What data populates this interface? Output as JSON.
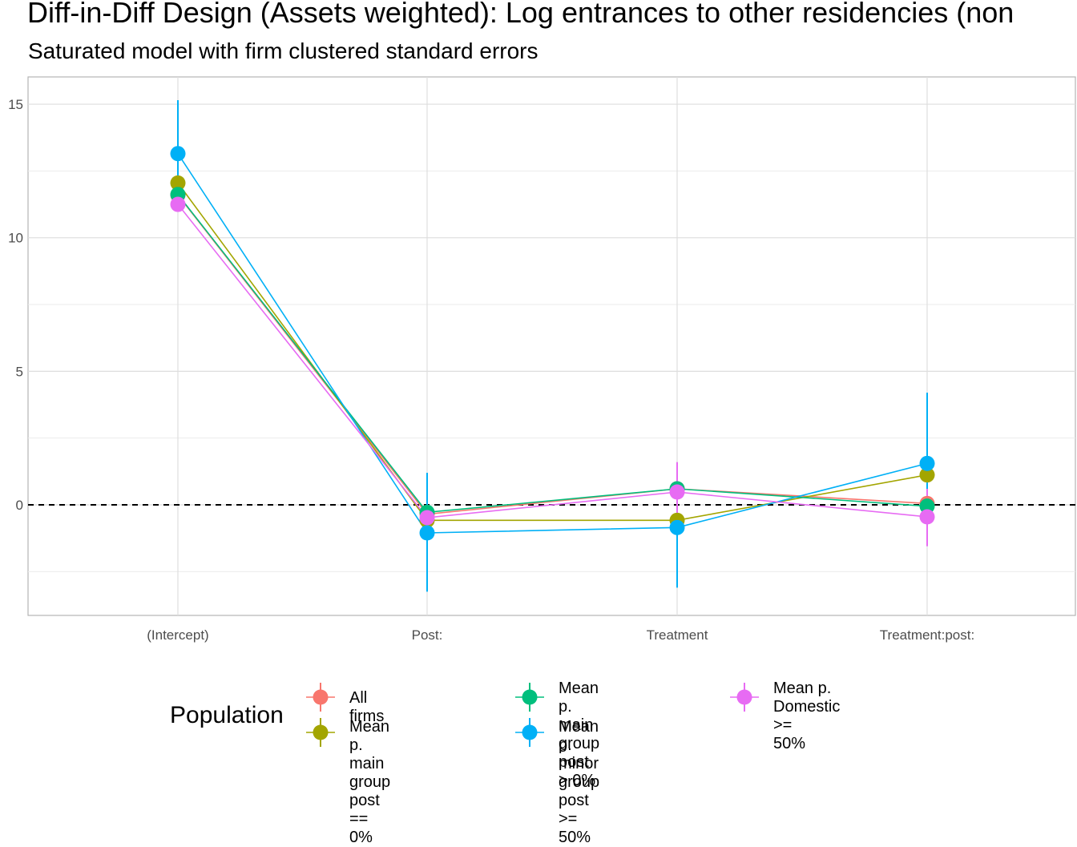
{
  "chart_data": {
    "type": "scatter",
    "title": "Diff-in-Diff Design (Assets weighted): Log entrances to other residencies (non",
    "subtitle": "Saturated model with firm clustered standard errors",
    "xlabel": "",
    "ylabel": "",
    "categories": [
      "(Intercept)",
      "Post:",
      "Treatment",
      "Treatment:post:"
    ],
    "y_ticks": [
      0,
      5,
      10,
      15
    ],
    "ylim": [
      -4.1,
      16.1
    ],
    "grid": true,
    "reference_line": 0,
    "legend": {
      "title": "Population",
      "position": "bottom"
    },
    "series": [
      {
        "name": "All firms",
        "color": "#F8766D",
        "values": [
          11.6,
          -0.35,
          0.6,
          0.05
        ],
        "ci_low": [
          11.5,
          -0.5,
          0.45,
          -0.1
        ],
        "ci_high": [
          11.7,
          -0.2,
          0.75,
          0.2
        ]
      },
      {
        "name": "Mean p. main group\npost == 0%",
        "color": "#A3A500",
        "values": [
          12.05,
          -0.58,
          -0.58,
          1.12
        ],
        "ci_low": [
          11.9,
          -0.7,
          -0.7,
          0.95
        ],
        "ci_high": [
          12.2,
          -0.45,
          -0.45,
          1.3
        ]
      },
      {
        "name": "Mean p. main group\npost > 0%",
        "color": "#00BF7D",
        "values": [
          11.62,
          -0.28,
          0.6,
          -0.05
        ],
        "ci_low": [
          11.45,
          -0.45,
          0.45,
          -0.2
        ],
        "ci_high": [
          11.8,
          -0.1,
          0.75,
          0.1
        ]
      },
      {
        "name": "Mean p. minor group\npost >= 50%",
        "color": "#00B0F6",
        "values": [
          13.15,
          -1.05,
          -0.85,
          1.55
        ],
        "ci_low": [
          11.2,
          -3.25,
          -3.1,
          -1.1
        ],
        "ci_high": [
          15.15,
          1.2,
          1.35,
          4.2
        ]
      },
      {
        "name": "Mean p. Domestic >=\n50%",
        "color": "#E76BF3",
        "values": [
          11.25,
          -0.48,
          0.48,
          -0.45
        ],
        "ci_low": [
          11.1,
          -0.7,
          -0.6,
          -1.55
        ],
        "ci_high": [
          11.4,
          -0.25,
          1.6,
          0.6
        ]
      }
    ]
  }
}
